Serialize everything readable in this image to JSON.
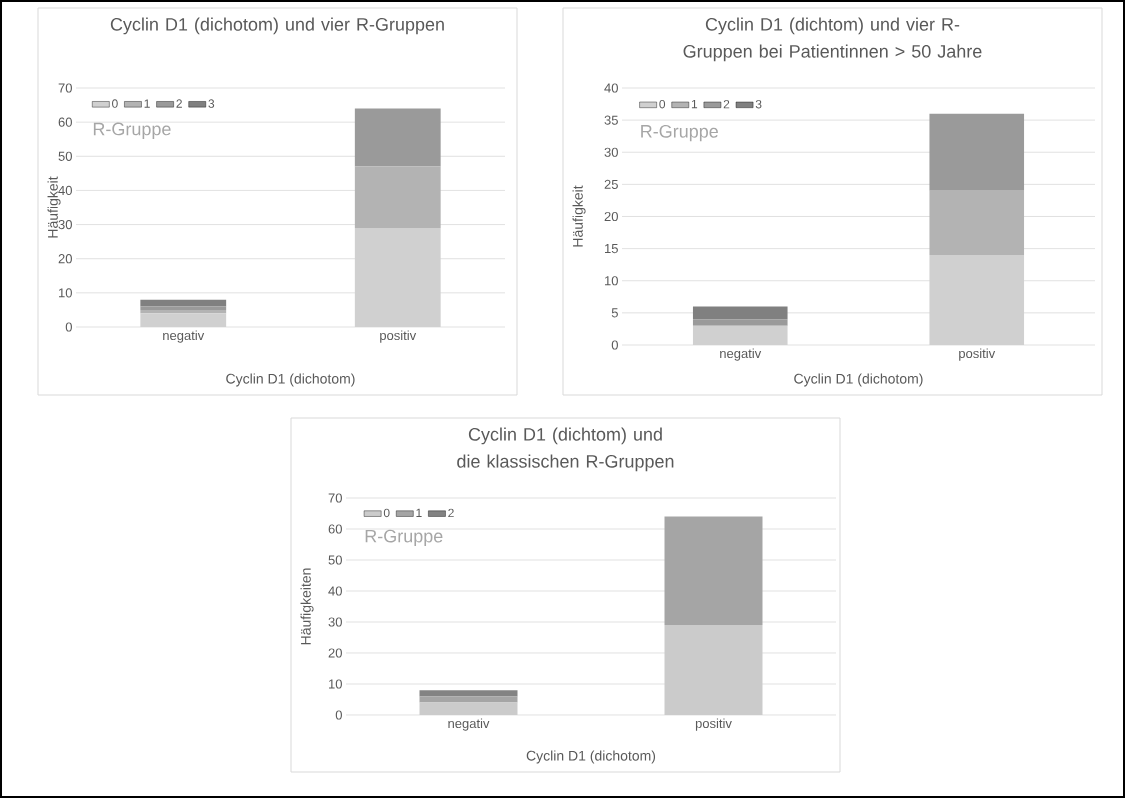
{
  "chart_data": [
    {
      "type": "bar",
      "stacked": true,
      "title": "Cyclin D1 (dichotom) und vier R-Gruppen",
      "xlabel": "Cyclin D1 (dichotom)",
      "ylabel": "Häufigkeit",
      "legend_title": "R-Gruppe",
      "categories": [
        "negativ",
        "positiv"
      ],
      "series": [
        {
          "name": "0",
          "color": "#d0d0d0",
          "values": [
            4,
            29
          ]
        },
        {
          "name": "1",
          "color": "#b3b3b3",
          "values": [
            1,
            18
          ]
        },
        {
          "name": "2",
          "color": "#9a9a9a",
          "values": [
            1,
            17
          ]
        },
        {
          "name": "3",
          "color": "#808080",
          "values": [
            2,
            0
          ]
        }
      ],
      "ylim": [
        0,
        70
      ],
      "yticks": [
        0,
        10,
        20,
        30,
        40,
        50,
        60,
        70
      ],
      "grid": "y",
      "legend": "top left"
    },
    {
      "type": "bar",
      "stacked": true,
      "title": "Cyclin D1 (dichtom) und vier R-Gruppen bei Patientinnen > 50 Jahre",
      "xlabel": "Cyclin D1 (dichotom)",
      "ylabel": "Häufigkeit",
      "legend_title": "R-Gruppe",
      "categories": [
        "negativ",
        "positiv"
      ],
      "series": [
        {
          "name": "0",
          "color": "#d0d0d0",
          "values": [
            3,
            14
          ]
        },
        {
          "name": "1",
          "color": "#b3b3b3",
          "values": [
            0,
            10
          ]
        },
        {
          "name": "2",
          "color": "#9a9a9a",
          "values": [
            1,
            12
          ]
        },
        {
          "name": "3",
          "color": "#808080",
          "values": [
            2,
            0
          ]
        }
      ],
      "ylim": [
        0,
        40
      ],
      "yticks": [
        0,
        5,
        10,
        15,
        20,
        25,
        30,
        35,
        40
      ],
      "grid": "y",
      "legend": "top left"
    },
    {
      "type": "bar",
      "stacked": true,
      "title": "Cyclin D1 (dichtom) und die klassischen R-Gruppen",
      "xlabel": "Cyclin D1 (dichotom)",
      "ylabel": "Häufigkeiten",
      "legend_title": "R-Gruppe",
      "categories": [
        "negativ",
        "positiv"
      ],
      "series": [
        {
          "name": "0",
          "color": "#cbcbcb",
          "values": [
            4,
            29
          ]
        },
        {
          "name": "1",
          "color": "#a5a5a5",
          "values": [
            2,
            35
          ]
        },
        {
          "name": "2",
          "color": "#838383",
          "values": [
            2,
            0
          ]
        }
      ],
      "ylim": [
        0,
        70
      ],
      "yticks": [
        0,
        10,
        20,
        30,
        40,
        50,
        60,
        70
      ],
      "grid": "y",
      "legend": "top left"
    }
  ]
}
